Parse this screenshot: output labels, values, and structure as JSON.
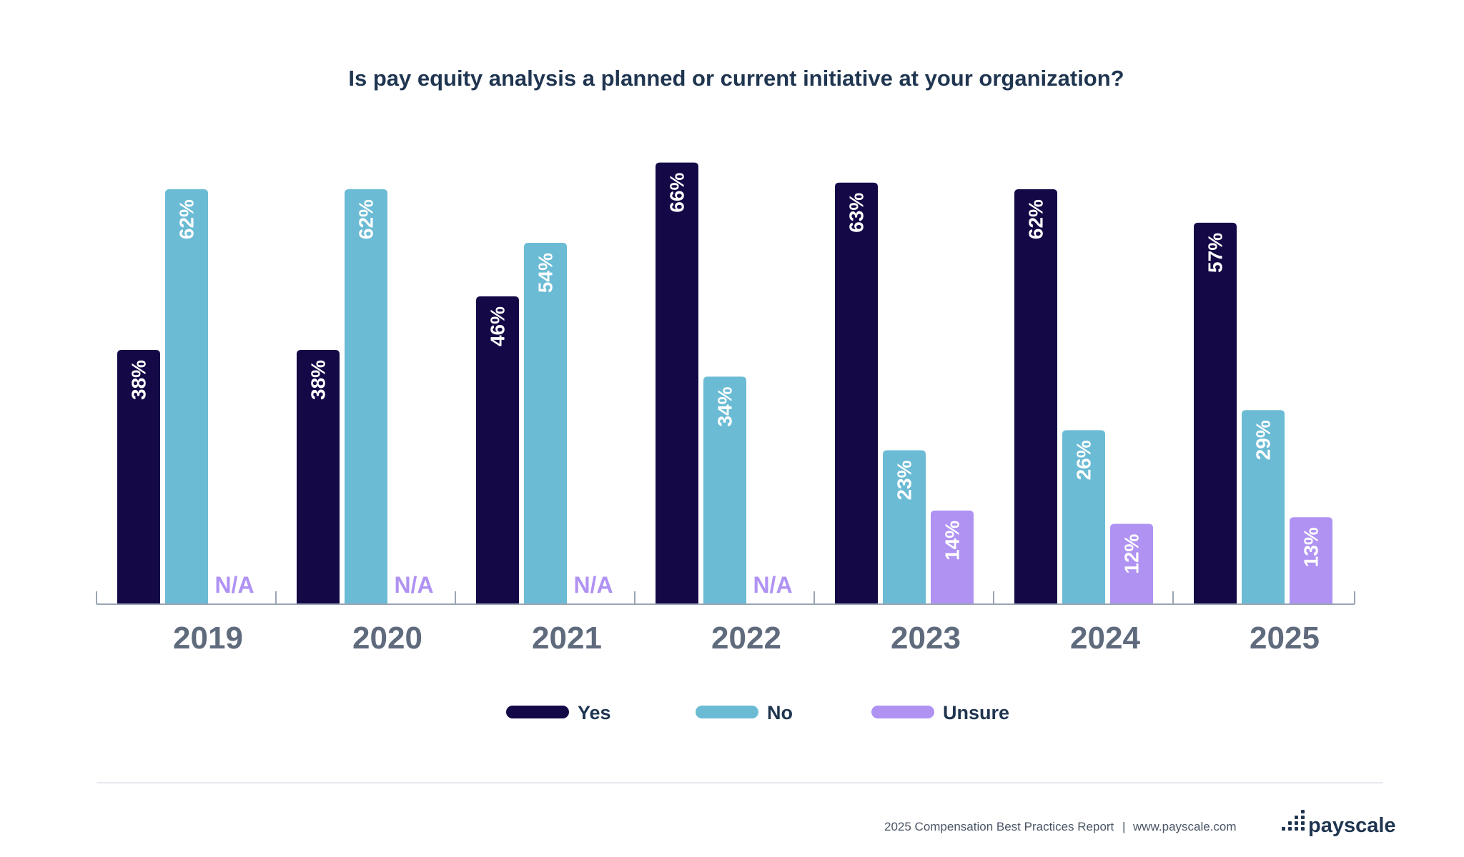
{
  "colors": {
    "yes": "#150847",
    "no": "#6bbbd5",
    "unsure": "#b092f3",
    "axis": "#9aa5b3",
    "title": "#1f3550"
  },
  "chart_data": {
    "type": "bar",
    "title": "Is pay equity analysis a planned or current initiative at your organization?",
    "xlabel": "",
    "ylabel": "",
    "ylim": [
      0,
      70
    ],
    "grid": false,
    "legend_position": "bottom-center",
    "categories": [
      "2019",
      "2020",
      "2021",
      "2022",
      "2023",
      "2024",
      "2025"
    ],
    "series": [
      {
        "name": "Yes",
        "values": [
          38,
          38,
          46,
          66,
          63,
          62,
          57
        ],
        "labels": [
          "38%",
          "38%",
          "46%",
          "66%",
          "63%",
          "62%",
          "57%"
        ]
      },
      {
        "name": "No",
        "values": [
          62,
          62,
          54,
          34,
          23,
          26,
          29
        ],
        "labels": [
          "62%",
          "62%",
          "54%",
          "34%",
          "23%",
          "26%",
          "29%"
        ]
      },
      {
        "name": "Unsure",
        "values": [
          null,
          null,
          null,
          null,
          14,
          12,
          13
        ],
        "labels": [
          "N/A",
          "N/A",
          "N/A",
          "N/A",
          "14%",
          "12%",
          "13%"
        ]
      }
    ]
  },
  "footer": {
    "report": "2025 Compensation Best Practices Report",
    "separator": "|",
    "url": "www.payscale.com",
    "brand": "payscale",
    "logo_icon": "payscale-dots-logo-icon"
  }
}
